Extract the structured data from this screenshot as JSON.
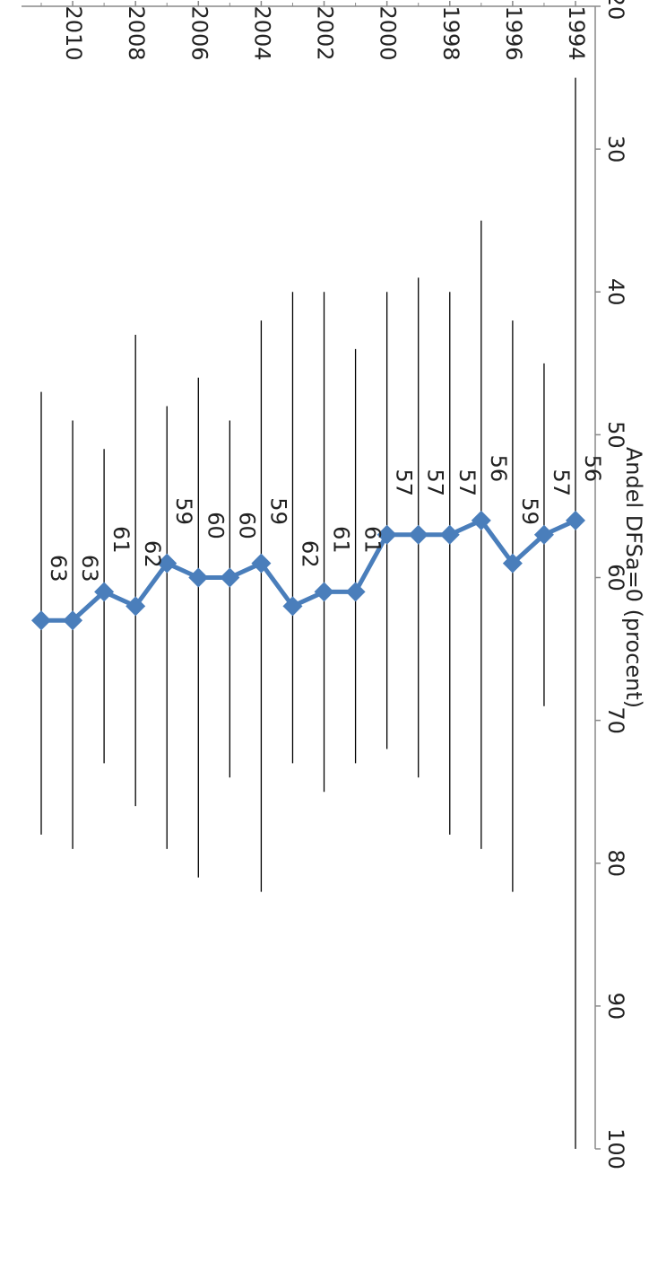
{
  "chart_data": {
    "type": "line",
    "title": "",
    "xlabel": "",
    "ylabel": "Andel DFSa=0 (procent)",
    "ylim": [
      20,
      100
    ],
    "yticks": [
      20,
      30,
      40,
      50,
      60,
      70,
      80,
      90,
      100
    ],
    "xlim": [
      1994,
      2011
    ],
    "xticks": [
      1994,
      1996,
      1998,
      2000,
      2002,
      2004,
      2006,
      2008,
      2010
    ],
    "grid": false,
    "legend": "none",
    "orientation": "rotated 180 degrees",
    "series": [
      {
        "color": "#4A7EBB",
        "marker": "diamond",
        "x": [
          1994,
          1995,
          1996,
          1997,
          1998,
          1999,
          2000,
          2001,
          2002,
          2003,
          2004,
          2005,
          2006,
          2007,
          2008,
          2009,
          2010,
          2011
        ],
        "values": [
          56,
          57,
          59,
          56,
          57,
          57,
          57,
          61,
          61,
          62,
          59,
          60,
          60,
          59,
          62,
          61,
          63,
          63
        ],
        "data_labels": [
          "56",
          "57",
          "59",
          "56",
          "57",
          "57",
          "57",
          "61",
          "61",
          "62",
          "59",
          "60",
          "60",
          "59",
          "62",
          "61",
          "63",
          "63"
        ],
        "error_low": [
          25,
          45,
          42,
          35,
          40,
          39,
          40,
          44,
          40,
          40,
          42,
          49,
          46,
          48,
          43,
          51,
          49,
          47
        ],
        "error_high": [
          100,
          69,
          82,
          79,
          78,
          74,
          72,
          73,
          75,
          73,
          82,
          74,
          81,
          79,
          76,
          73,
          79,
          78
        ]
      }
    ]
  }
}
